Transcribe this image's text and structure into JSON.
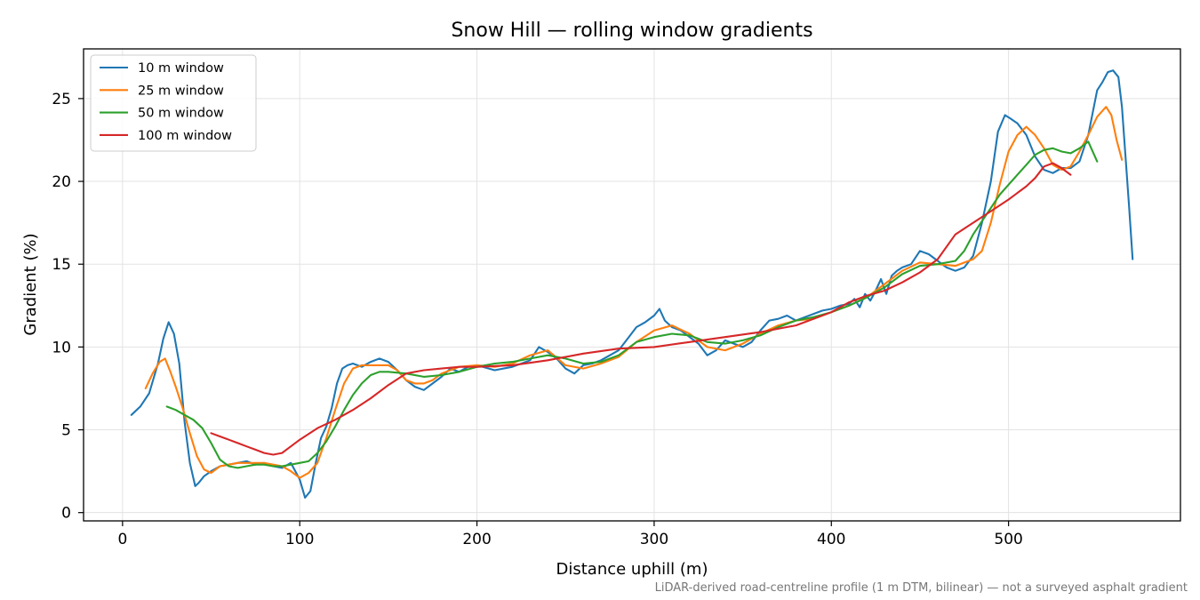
{
  "chart_data": {
    "type": "line",
    "title": "Snow Hill — rolling window gradients",
    "xlabel": "Distance uphill (m)",
    "ylabel": "Gradient (%)",
    "footnote": "LiDAR-derived road-centreline profile (1 m DTM, bilinear) — not a surveyed asphalt gradient",
    "xlim": [
      -22,
      597
    ],
    "ylim": [
      -0.5,
      28
    ],
    "xticks": [
      0,
      100,
      200,
      300,
      400,
      500
    ],
    "yticks": [
      0,
      5,
      10,
      15,
      20,
      25
    ],
    "grid": true,
    "legend": "top-left",
    "series": [
      {
        "name": "10 m window",
        "color": "#1f77b4",
        "x": [
          5,
          10,
          15,
          20,
          23,
          26,
          29,
          32,
          35,
          38,
          41,
          43,
          46,
          50,
          55,
          60,
          65,
          70,
          75,
          80,
          85,
          90,
          95,
          100,
          103,
          106,
          109,
          112,
          115,
          118,
          121,
          124,
          127,
          130,
          135,
          140,
          145,
          150,
          155,
          160,
          165,
          170,
          175,
          180,
          185,
          190,
          195,
          200,
          210,
          220,
          230,
          235,
          240,
          245,
          250,
          255,
          260,
          265,
          270,
          275,
          280,
          285,
          290,
          295,
          300,
          303,
          306,
          310,
          315,
          320,
          325,
          330,
          335,
          340,
          345,
          350,
          355,
          360,
          365,
          370,
          375,
          380,
          385,
          390,
          395,
          400,
          405,
          410,
          413,
          416,
          419,
          422,
          425,
          428,
          431,
          434,
          437,
          440,
          445,
          450,
          455,
          460,
          465,
          470,
          475,
          480,
          485,
          490,
          494,
          498,
          501,
          505,
          510,
          515,
          520,
          525,
          530,
          535,
          540,
          545,
          550,
          553,
          556,
          559,
          562,
          564,
          566,
          568,
          570
        ],
        "y": [
          5.9,
          6.4,
          7.2,
          9.0,
          10.5,
          11.5,
          10.8,
          9.0,
          5.5,
          3.0,
          1.6,
          1.8,
          2.2,
          2.5,
          2.8,
          2.9,
          3.0,
          3.1,
          2.9,
          3.0,
          2.8,
          2.7,
          3.0,
          2.0,
          0.9,
          1.3,
          3.0,
          4.5,
          5.2,
          6.3,
          7.8,
          8.7,
          8.9,
          9.0,
          8.8,
          9.1,
          9.3,
          9.1,
          8.6,
          8.0,
          7.6,
          7.4,
          7.8,
          8.2,
          8.7,
          8.5,
          8.8,
          8.9,
          8.6,
          8.8,
          9.2,
          10.0,
          9.7,
          9.3,
          8.7,
          8.4,
          8.9,
          9.0,
          9.2,
          9.5,
          9.8,
          10.5,
          11.2,
          11.5,
          11.9,
          12.3,
          11.6,
          11.2,
          11.0,
          10.6,
          10.2,
          9.5,
          9.8,
          10.4,
          10.2,
          10.0,
          10.3,
          11.0,
          11.6,
          11.7,
          11.9,
          11.6,
          11.8,
          12.0,
          12.2,
          12.3,
          12.5,
          12.6,
          12.9,
          12.4,
          13.2,
          12.8,
          13.4,
          14.1,
          13.2,
          14.3,
          14.6,
          14.8,
          15.0,
          15.8,
          15.6,
          15.2,
          14.8,
          14.6,
          14.8,
          15.5,
          17.5,
          20.0,
          23.0,
          24.0,
          23.8,
          23.5,
          22.8,
          21.5,
          20.7,
          20.5,
          20.8,
          20.8,
          21.2,
          22.8,
          25.5,
          26.0,
          26.6,
          26.7,
          26.3,
          24.5,
          21.5,
          18.5,
          15.3
        ]
      },
      {
        "name": "25 m window",
        "color": "#ff7f0e",
        "x": [
          13,
          17,
          21,
          24,
          27,
          30,
          34,
          38,
          42,
          46,
          50,
          55,
          60,
          65,
          70,
          75,
          80,
          85,
          90,
          95,
          100,
          105,
          110,
          115,
          120,
          125,
          130,
          135,
          140,
          145,
          150,
          155,
          160,
          165,
          170,
          175,
          180,
          190,
          200,
          210,
          220,
          230,
          240,
          250,
          260,
          270,
          280,
          290,
          300,
          310,
          320,
          330,
          340,
          350,
          360,
          370,
          380,
          390,
          400,
          410,
          420,
          430,
          440,
          450,
          460,
          470,
          480,
          485,
          490,
          495,
          500,
          505,
          510,
          515,
          520,
          525,
          530,
          535,
          540,
          545,
          550,
          555,
          558,
          561,
          564
        ],
        "y": [
          7.5,
          8.4,
          9.1,
          9.3,
          8.5,
          7.6,
          6.3,
          4.8,
          3.4,
          2.6,
          2.4,
          2.8,
          2.9,
          3.0,
          3.0,
          3.0,
          3.0,
          2.9,
          2.8,
          2.5,
          2.1,
          2.4,
          3.0,
          4.5,
          6.2,
          7.8,
          8.7,
          8.9,
          8.9,
          8.9,
          8.9,
          8.6,
          8.0,
          7.8,
          7.8,
          8.0,
          8.4,
          8.8,
          8.9,
          8.8,
          9.0,
          9.5,
          9.8,
          8.9,
          8.7,
          9.0,
          9.4,
          10.3,
          11.0,
          11.3,
          10.8,
          10.0,
          9.8,
          10.2,
          10.8,
          11.3,
          11.6,
          11.7,
          12.1,
          12.5,
          13.0,
          13.8,
          14.6,
          15.1,
          15.0,
          14.9,
          15.3,
          15.8,
          17.5,
          19.8,
          21.8,
          22.8,
          23.3,
          22.8,
          22.0,
          21.0,
          20.7,
          20.9,
          21.8,
          22.8,
          23.9,
          24.5,
          24.0,
          22.5,
          21.3
        ]
      },
      {
        "name": "50 m window",
        "color": "#2ca02c",
        "x": [
          25,
          30,
          35,
          40,
          45,
          50,
          55,
          60,
          65,
          70,
          75,
          80,
          85,
          90,
          95,
          100,
          105,
          110,
          115,
          120,
          125,
          130,
          135,
          140,
          145,
          150,
          160,
          170,
          180,
          190,
          200,
          210,
          220,
          230,
          240,
          250,
          260,
          270,
          280,
          290,
          300,
          310,
          320,
          330,
          340,
          350,
          360,
          370,
          380,
          390,
          400,
          410,
          420,
          430,
          440,
          450,
          460,
          470,
          475,
          480,
          485,
          490,
          495,
          500,
          505,
          510,
          515,
          520,
          525,
          530,
          535,
          540,
          545,
          550
        ],
        "y": [
          6.4,
          6.2,
          5.9,
          5.6,
          5.1,
          4.2,
          3.2,
          2.8,
          2.7,
          2.8,
          2.9,
          2.9,
          2.8,
          2.8,
          2.9,
          3.0,
          3.1,
          3.6,
          4.3,
          5.2,
          6.2,
          7.1,
          7.8,
          8.3,
          8.5,
          8.5,
          8.4,
          8.2,
          8.3,
          8.5,
          8.8,
          9.0,
          9.1,
          9.3,
          9.5,
          9.3,
          9.0,
          9.1,
          9.5,
          10.3,
          10.6,
          10.8,
          10.7,
          10.3,
          10.2,
          10.4,
          10.7,
          11.2,
          11.6,
          11.8,
          12.1,
          12.5,
          13.0,
          13.6,
          14.4,
          14.9,
          15.0,
          15.2,
          15.8,
          16.8,
          17.6,
          18.4,
          19.2,
          19.8,
          20.4,
          21.0,
          21.6,
          21.9,
          22.0,
          21.8,
          21.7,
          22.0,
          22.4,
          21.2
        ]
      },
      {
        "name": "100 m window",
        "color": "#d62728",
        "x": [
          50,
          55,
          60,
          65,
          70,
          75,
          80,
          85,
          90,
          95,
          100,
          110,
          120,
          130,
          140,
          150,
          160,
          170,
          180,
          190,
          200,
          220,
          240,
          260,
          280,
          300,
          320,
          340,
          360,
          380,
          400,
          410,
          420,
          430,
          440,
          450,
          460,
          470,
          480,
          490,
          500,
          510,
          515,
          520,
          525,
          530,
          535
        ],
        "y": [
          4.8,
          4.6,
          4.4,
          4.2,
          4.0,
          3.8,
          3.6,
          3.5,
          3.6,
          4.0,
          4.4,
          5.1,
          5.6,
          6.2,
          6.9,
          7.7,
          8.4,
          8.6,
          8.7,
          8.8,
          8.8,
          8.9,
          9.2,
          9.6,
          9.9,
          10.0,
          10.3,
          10.6,
          10.9,
          11.3,
          12.1,
          12.7,
          13.1,
          13.4,
          13.9,
          14.5,
          15.3,
          16.8,
          17.5,
          18.2,
          18.9,
          19.7,
          20.2,
          20.9,
          21.1,
          20.8,
          20.4
        ]
      }
    ]
  }
}
